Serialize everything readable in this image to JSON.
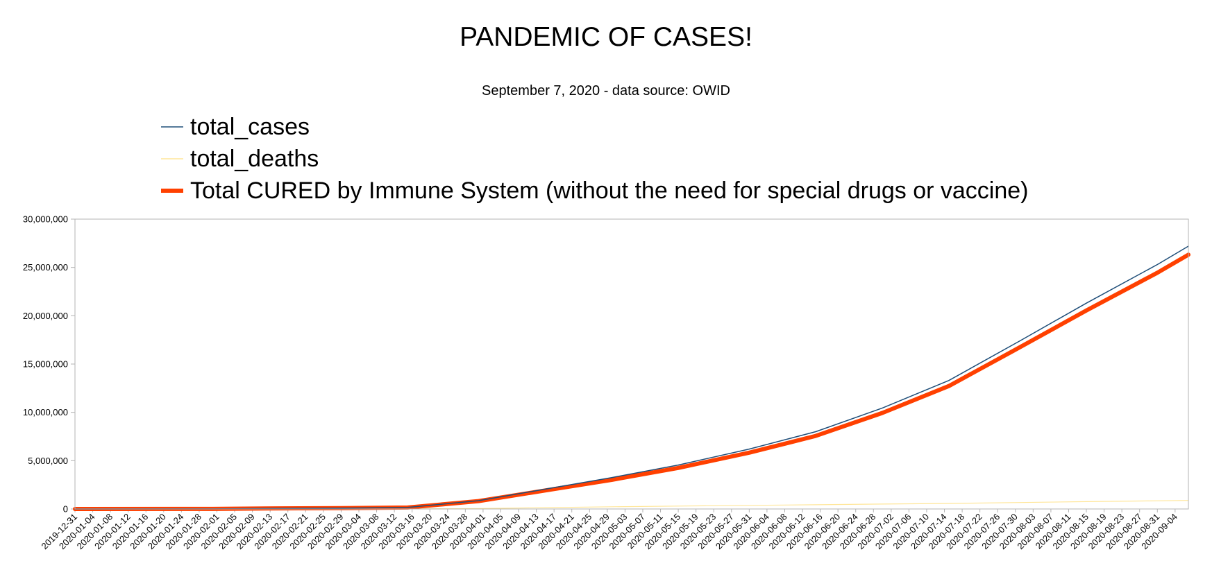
{
  "chart_data": {
    "type": "line",
    "title": "PANDEMIC OF CASES!",
    "subtitle": "September 7, 2020 - data source: OWID",
    "xlabel": "",
    "ylabel": "",
    "ylim": [
      0,
      30000000
    ],
    "yticks": [
      0,
      5000000,
      10000000,
      15000000,
      20000000,
      25000000,
      30000000
    ],
    "ytick_labels": [
      "0",
      "5,000,000",
      "10,000,000",
      "15,000,000",
      "20,000,000",
      "25,000,000",
      "30,000,000"
    ],
    "xlim": [
      "2019-12-31",
      "2020-09-07"
    ],
    "xtick_labels": [
      "2019-12-31",
      "2020-01-04",
      "2020-01-08",
      "2020-01-12",
      "2020-01-16",
      "2020-01-20",
      "2020-01-24",
      "2020-01-28",
      "2020-02-01",
      "2020-02-05",
      "2020-02-09",
      "2020-02-13",
      "2020-02-17",
      "2020-02-21",
      "2020-02-25",
      "2020-02-29",
      "2020-03-04",
      "2020-03-08",
      "2020-03-12",
      "2020-03-16",
      "2020-03-20",
      "2020-03-24",
      "2020-03-28",
      "2020-04-01",
      "2020-04-05",
      "2020-04-09",
      "2020-04-13",
      "2020-04-17",
      "2020-04-21",
      "2020-04-25",
      "2020-04-29",
      "2020-05-03",
      "2020-05-07",
      "2020-05-11",
      "2020-05-15",
      "2020-05-19",
      "2020-05-23",
      "2020-05-27",
      "2020-05-31",
      "2020-06-04",
      "2020-06-08",
      "2020-06-12",
      "2020-06-16",
      "2020-06-20",
      "2020-06-24",
      "2020-06-28",
      "2020-07-02",
      "2020-07-06",
      "2020-07-10",
      "2020-07-14",
      "2020-07-18",
      "2020-07-22",
      "2020-07-26",
      "2020-07-30",
      "2020-08-03",
      "2020-08-07",
      "2020-08-11",
      "2020-08-15",
      "2020-08-19",
      "2020-08-23",
      "2020-08-27",
      "2020-08-31",
      "2020-09-04"
    ],
    "grid": false,
    "legend_position": "top-left",
    "x": [
      "2019-12-31",
      "2020-01-31",
      "2020-02-15",
      "2020-02-29",
      "2020-03-15",
      "2020-03-31",
      "2020-04-15",
      "2020-04-30",
      "2020-05-15",
      "2020-05-31",
      "2020-06-15",
      "2020-06-30",
      "2020-07-15",
      "2020-07-31",
      "2020-08-15",
      "2020-08-31",
      "2020-09-07"
    ],
    "series": [
      {
        "name": "total_cases",
        "color": "#1f4e79",
        "values": [
          0,
          10000,
          68000,
          86000,
          160000,
          860000,
          2050000,
          3250000,
          4550000,
          6200000,
          8000000,
          10450000,
          13300000,
          17400000,
          21300000,
          25300000,
          27200000
        ]
      },
      {
        "name": "total_deaths",
        "color": "#ffe699",
        "values": [
          0,
          200,
          1600,
          3000,
          6500,
          43000,
          135000,
          233000,
          302000,
          370000,
          435000,
          508000,
          576000,
          665000,
          758000,
          848000,
          885000
        ]
      },
      {
        "name": "Total CURED by Immune System (without the need for special drugs or vaccine)",
        "color": "#ff4000",
        "values": [
          0,
          9800,
          66400,
          83000,
          153500,
          817000,
          1915000,
          3017000,
          4248000,
          5830000,
          7565000,
          9942000,
          12724000,
          16735000,
          20542000,
          24452000,
          26315000
        ]
      }
    ]
  }
}
